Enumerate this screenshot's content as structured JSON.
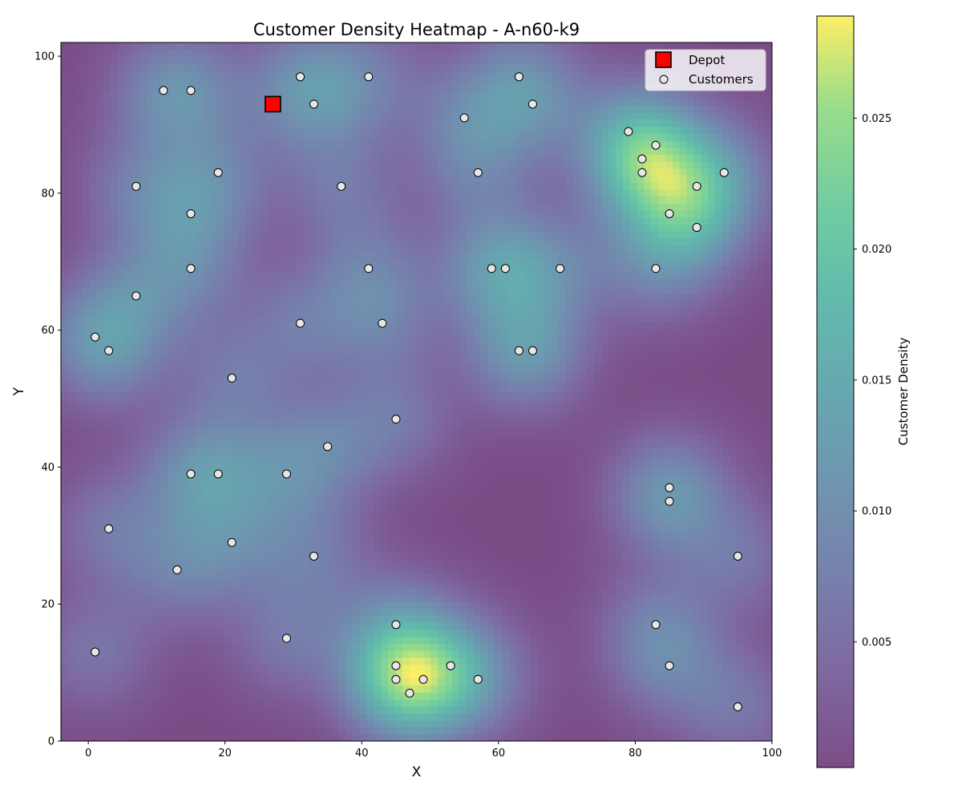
{
  "chart_data": {
    "type": "scatter",
    "title": "Customer Density Heatmap - A-n60-k9",
    "xlabel": "X",
    "ylabel": "Y",
    "xlim": [
      -4,
      100
    ],
    "ylim": [
      0,
      102
    ],
    "xticks": [
      0,
      20,
      40,
      60,
      80,
      100
    ],
    "yticks": [
      0,
      20,
      40,
      60,
      80,
      100
    ],
    "grid": false,
    "legend_position": "top-right",
    "background": "gaussian kernel density heatmap of customers (viridis colormap, semi-transparent)",
    "colors": {
      "depot": "#ff0000",
      "customer": "#e6e6e6",
      "marker_edge": "#000000",
      "colormap_low": "#440154",
      "colormap_high": "#fde725"
    },
    "series": [
      {
        "name": "Depot",
        "marker": "square",
        "points": [
          [
            27,
            93
          ]
        ]
      },
      {
        "name": "Customers",
        "marker": "circle",
        "points": [
          [
            11,
            95
          ],
          [
            15,
            95
          ],
          [
            31,
            97
          ],
          [
            33,
            93
          ],
          [
            41,
            97
          ],
          [
            63,
            97
          ],
          [
            65,
            93
          ],
          [
            55,
            91
          ],
          [
            79,
            89
          ],
          [
            83,
            87
          ],
          [
            81,
            85
          ],
          [
            81,
            83
          ],
          [
            93,
            83
          ],
          [
            89,
            81
          ],
          [
            85,
            77
          ],
          [
            89,
            75
          ],
          [
            19,
            83
          ],
          [
            7,
            81
          ],
          [
            37,
            81
          ],
          [
            57,
            83
          ],
          [
            15,
            77
          ],
          [
            15,
            69
          ],
          [
            41,
            69
          ],
          [
            59,
            69
          ],
          [
            61,
            69
          ],
          [
            69,
            69
          ],
          [
            83,
            69
          ],
          [
            7,
            65
          ],
          [
            31,
            61
          ],
          [
            43,
            61
          ],
          [
            1,
            59
          ],
          [
            3,
            57
          ],
          [
            63,
            57
          ],
          [
            65,
            57
          ],
          [
            21,
            53
          ],
          [
            45,
            47
          ],
          [
            35,
            43
          ],
          [
            15,
            39
          ],
          [
            19,
            39
          ],
          [
            29,
            39
          ],
          [
            85,
            37
          ],
          [
            85,
            35
          ],
          [
            3,
            31
          ],
          [
            21,
            29
          ],
          [
            33,
            27
          ],
          [
            95,
            27
          ],
          [
            13,
            25
          ],
          [
            45,
            17
          ],
          [
            83,
            17
          ],
          [
            29,
            15
          ],
          [
            1,
            13
          ],
          [
            45,
            11
          ],
          [
            53,
            11
          ],
          [
            85,
            11
          ],
          [
            45,
            9
          ],
          [
            49,
            9
          ],
          [
            57,
            9
          ],
          [
            47,
            7
          ],
          [
            95,
            5
          ]
        ]
      }
    ],
    "colorbar": {
      "label": "Customer Density",
      "min": 0.0002,
      "max": 0.0289,
      "ticks": [
        {
          "value": 0.005,
          "label": "0.005"
        },
        {
          "value": 0.01,
          "label": "0.010"
        },
        {
          "value": 0.015,
          "label": "0.015"
        },
        {
          "value": 0.02,
          "label": "0.020"
        },
        {
          "value": 0.025,
          "label": "0.025"
        }
      ]
    }
  }
}
